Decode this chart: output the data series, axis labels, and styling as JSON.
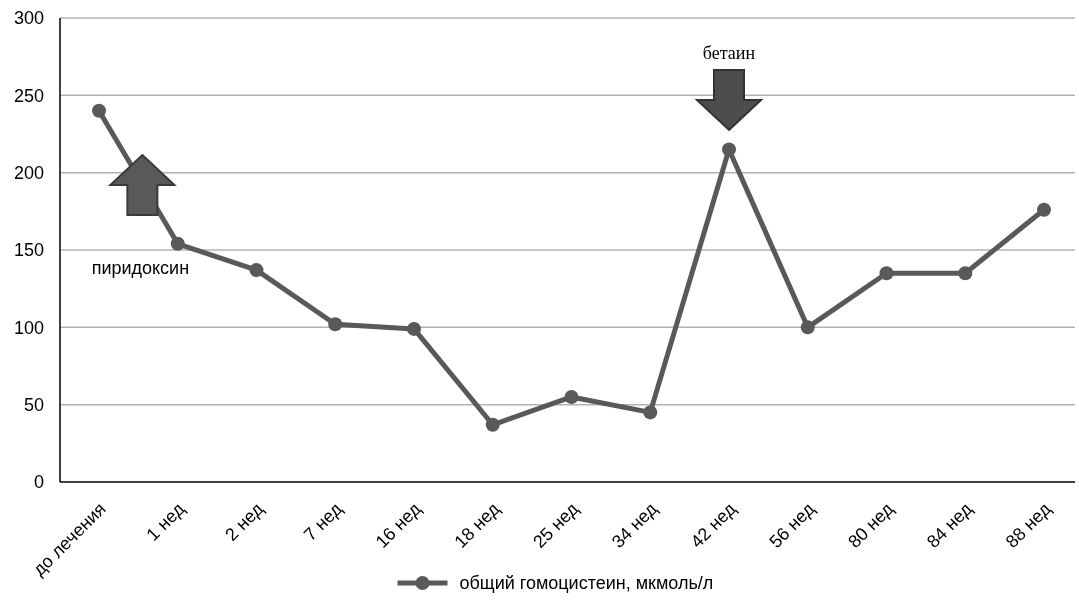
{
  "chart_data": {
    "type": "line",
    "categories": [
      "до лечения",
      "1 нед",
      "2 нед",
      "7 нед",
      "16 нед",
      "18 нед",
      "25 нед",
      "34 нед",
      "42 нед",
      "56 нед",
      "80 нед",
      "84 нед",
      "88 нед"
    ],
    "series": [
      {
        "name": "общий гомоцистеин, мкмоль/л",
        "color": "#595959",
        "values": [
          240,
          154,
          137,
          102,
          99,
          37,
          55,
          45,
          215,
          100,
          135,
          135,
          176
        ]
      }
    ],
    "ylim": [
      0,
      300
    ],
    "yticks": [
      0,
      50,
      100,
      150,
      200,
      250,
      300
    ],
    "grid": "y",
    "legend": "bottom",
    "marker": "circle",
    "line_style": "solid",
    "annotations": [
      "пиридоксин",
      "бетаин"
    ]
  }
}
